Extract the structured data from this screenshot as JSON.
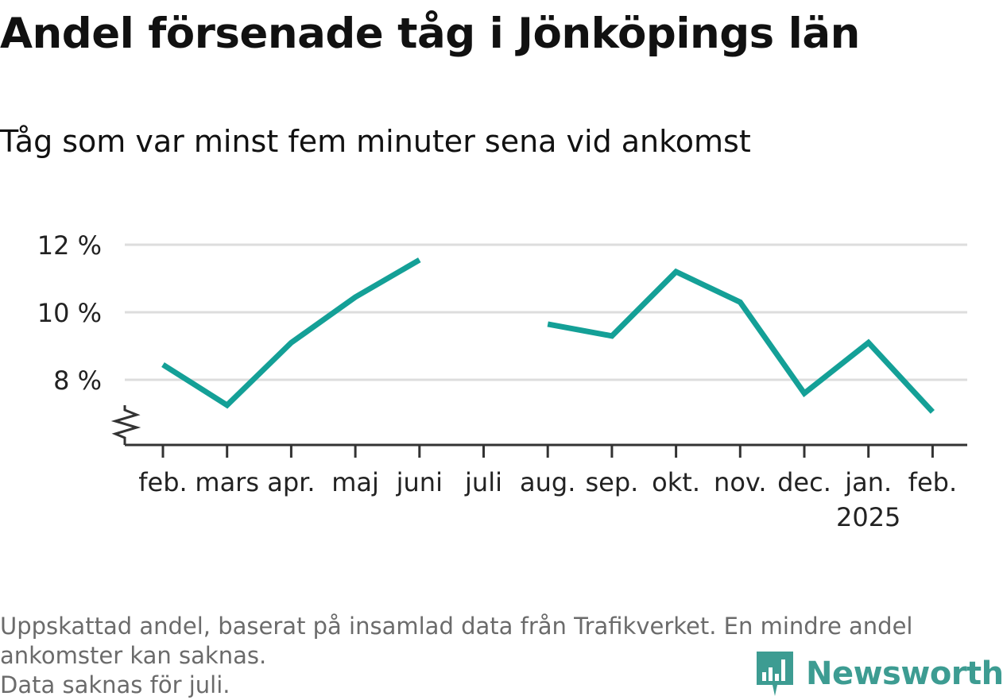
{
  "title": "Andel försenade tåg i Jönköpings län",
  "subtitle": "Tåg som var minst fem minuter sena vid ankomst",
  "footnote": {
    "line1": "Uppskattad andel, baserat på insamlad data från Trafikverket. En mindre andel",
    "line2": "ankomster kan saknas.",
    "line3": "Data saknas för juli."
  },
  "logo": {
    "text": "Newsworthy",
    "icon": "bar-chart-pin-icon"
  },
  "colors": {
    "line": "#14a097",
    "grid": "#dddddd",
    "axis": "#333333"
  },
  "chart_data": {
    "type": "line",
    "categories": [
      "feb.",
      "mars",
      "apr.",
      "maj",
      "juni",
      "juli",
      "aug.",
      "sep.",
      "okt.",
      "nov.",
      "dec.",
      "jan.",
      "feb."
    ],
    "year_label": {
      "category_index": 11,
      "text": "2025"
    },
    "series": [
      {
        "values": [
          8.45,
          7.25,
          9.1,
          10.45,
          11.55,
          null,
          9.65,
          9.3,
          11.2,
          10.3,
          7.6,
          9.1,
          7.05
        ]
      }
    ],
    "y_ticks": [
      {
        "value": 8,
        "label": "8 %"
      },
      {
        "value": 10,
        "label": "10 %"
      },
      {
        "value": 12,
        "label": "12 %"
      }
    ],
    "ylim": [
      6,
      12
    ],
    "axis_break": true,
    "grid": true,
    "legend": "none"
  }
}
